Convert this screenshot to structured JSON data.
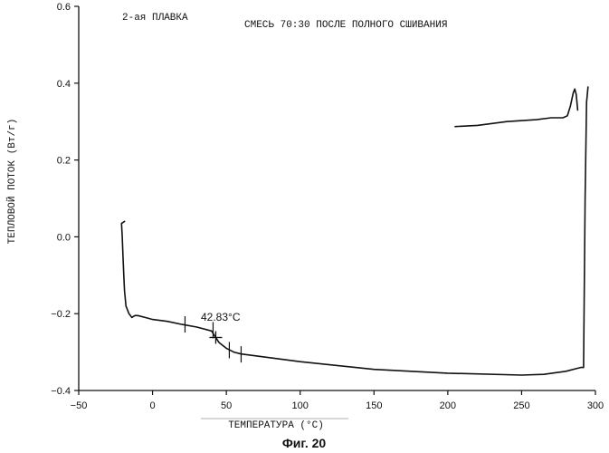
{
  "chart_data": {
    "type": "line",
    "title_left": "2-ая ПЛАВКА",
    "title_right": "СМЕСЬ 70:30 ПОСЛЕ ПОЛНОГО СШИВАНИЯ",
    "xlabel": "ТЕМПЕРАТУРА (°C)",
    "ylabel": "ТЕПЛОВОЙ ПОТОК (Вт/г)",
    "xlim": [
      -50,
      300
    ],
    "ylim": [
      -0.4,
      0.6
    ],
    "x_ticks": [
      -50,
      0,
      50,
      100,
      150,
      200,
      250,
      300
    ],
    "y_ticks": [
      -0.4,
      -0.2,
      0.0,
      0.2,
      0.4,
      0.6
    ],
    "x_tick_labels": [
      "−50",
      "0",
      "50",
      "100",
      "150",
      "200",
      "250",
      "300"
    ],
    "y_tick_labels": [
      "−0.4",
      "−0.2",
      "0.0",
      "0.2",
      "0.4",
      "0.6"
    ],
    "grid": false,
    "series": [
      {
        "x": [
          -19,
          -21,
          -20.5,
          -20,
          -19.5,
          -19,
          -18,
          -16,
          -14,
          -12,
          -10,
          -5,
          0,
          10,
          20,
          30,
          40,
          42.8,
          45,
          50,
          55,
          60,
          70,
          100,
          150,
          200,
          250,
          265,
          280,
          290,
          292,
          293,
          294,
          295
        ],
        "y": [
          0.04,
          0.035,
          0.0,
          -0.05,
          -0.1,
          -0.14,
          -0.18,
          -0.2,
          -0.21,
          -0.205,
          -0.205,
          -0.21,
          -0.215,
          -0.22,
          -0.228,
          -0.235,
          -0.245,
          -0.262,
          -0.275,
          -0.29,
          -0.3,
          -0.305,
          -0.31,
          -0.325,
          -0.345,
          -0.355,
          -0.36,
          -0.358,
          -0.35,
          -0.34,
          -0.34,
          0.1,
          0.35,
          0.39
        ]
      },
      {
        "x": [
          205,
          220,
          240,
          260,
          270,
          278,
          281,
          283,
          285,
          286,
          287,
          288
        ],
        "y": [
          0.287,
          0.29,
          0.3,
          0.305,
          0.31,
          0.31,
          0.315,
          0.34,
          0.375,
          0.385,
          0.37,
          0.33
        ]
      }
    ],
    "annotations": [
      {
        "text": "42.83°C",
        "x": 42.83,
        "y": -0.262
      }
    ],
    "tick_marks": [
      {
        "x": 22,
        "y": -0.228
      },
      {
        "x": 41,
        "y": -0.243
      },
      {
        "x": 52,
        "y": -0.295
      },
      {
        "x": 60,
        "y": -0.306
      }
    ]
  },
  "caption": "Фиг. 20"
}
